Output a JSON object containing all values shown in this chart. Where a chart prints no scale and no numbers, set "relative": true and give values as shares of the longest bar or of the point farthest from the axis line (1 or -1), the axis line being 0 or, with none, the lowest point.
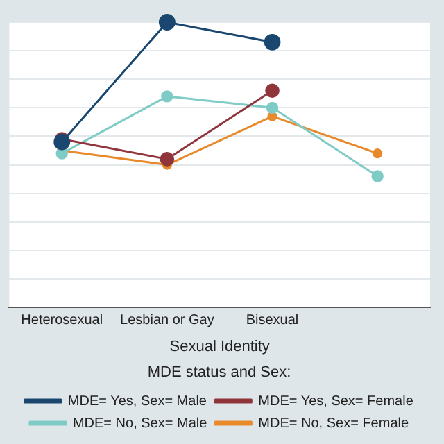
{
  "chart_data": {
    "type": "line",
    "xlabel": "Sexual Identity",
    "legend_title": "MDE status and Sex:",
    "relative": true,
    "categories": [
      "Heterosexual",
      "Lesbian or Gay",
      "Bisexual",
      null
    ],
    "series": [
      {
        "name": "MDE= Yes, Sex= Male",
        "color": "#1a476f",
        "values": [
          0.58,
          1.0,
          0.93,
          null
        ]
      },
      {
        "name": "MDE= Yes, Sex= Female",
        "color": "#90353b",
        "values": [
          0.59,
          0.52,
          0.76,
          null
        ]
      },
      {
        "name": "MDE= No, Sex= Male",
        "color": "#7fcbc6",
        "values": [
          0.54,
          0.74,
          0.7,
          0.46
        ]
      },
      {
        "name": "MDE= No, Sex= Female",
        "color": "#e8892b",
        "values": [
          0.55,
          0.5,
          0.67,
          0.54
        ]
      }
    ],
    "grid": "y",
    "legend": "bottom",
    "marker": "circle",
    "line_style": "solid"
  }
}
